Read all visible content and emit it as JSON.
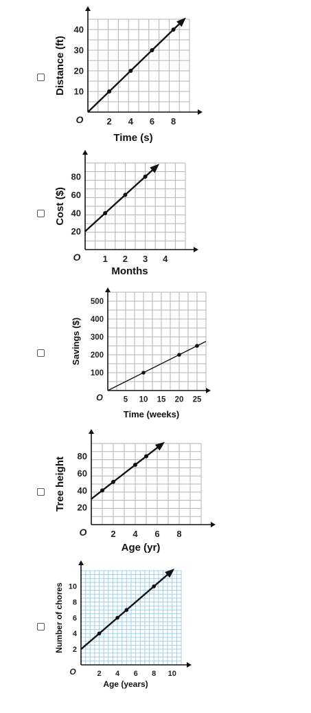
{
  "options": [
    {
      "chart_data": {
        "type": "line",
        "xlabel": "Time (s)",
        "ylabel": "Distance (ft)",
        "origin_label": "O",
        "xticks": [
          2,
          4,
          6,
          8
        ],
        "yticks": [
          10,
          20,
          30,
          40
        ],
        "xlim": [
          0,
          9.5
        ],
        "ylim": [
          0,
          45
        ],
        "points": [
          [
            2,
            10
          ],
          [
            4,
            20
          ],
          [
            6,
            30
          ],
          [
            8,
            40
          ]
        ],
        "line": {
          "x1": 0,
          "y1": 0,
          "x2": 8.8,
          "y2": 44
        }
      }
    },
    {
      "chart_data": {
        "type": "line",
        "xlabel": "Months",
        "ylabel": "Cost ($)",
        "origin_label": "O",
        "xticks": [
          1,
          2,
          3,
          4
        ],
        "yticks": [
          20,
          40,
          60,
          80
        ],
        "xlim": [
          0,
          5
        ],
        "ylim": [
          0,
          95
        ],
        "points": [
          [
            1,
            40
          ],
          [
            2,
            60
          ],
          [
            3,
            80
          ]
        ],
        "line": {
          "x1": 0,
          "y1": 20,
          "x2": 3.5,
          "y2": 90
        }
      }
    },
    {
      "chart_data": {
        "type": "line",
        "xlabel": "Time (weeks)",
        "ylabel": "Savings ($)",
        "origin_label": "O",
        "xticks": [
          5,
          10,
          15,
          20,
          25
        ],
        "yticks": [
          100,
          200,
          300,
          400,
          500
        ],
        "xlim": [
          0,
          27.5
        ],
        "ylim": [
          0,
          550
        ],
        "points": [
          [
            10,
            100
          ],
          [
            20,
            200
          ],
          [
            25,
            250
          ]
        ],
        "line": {
          "x1": 0,
          "y1": 0,
          "x2": 27.5,
          "y2": 275
        }
      }
    },
    {
      "chart_data": {
        "type": "line",
        "xlabel": "Age (yr)",
        "ylabel": "Tree height",
        "origin_label": "O",
        "xticks": [
          2,
          4,
          6,
          8
        ],
        "yticks": [
          20,
          40,
          60,
          80
        ],
        "xlim": [
          0,
          10
        ],
        "ylim": [
          0,
          95
        ],
        "points": [
          [
            1,
            40
          ],
          [
            2,
            50
          ],
          [
            4,
            70
          ],
          [
            5,
            80
          ]
        ],
        "line": {
          "x1": 0,
          "y1": 30,
          "x2": 6.3,
          "y2": 93
        }
      }
    },
    {
      "chart_data": {
        "type": "line",
        "xlabel": "Age (years)",
        "ylabel": "Number of chores",
        "origin_label": "O",
        "xticks": [
          2,
          4,
          6,
          8,
          10
        ],
        "yticks": [
          2,
          4,
          6,
          8,
          10
        ],
        "xlim": [
          0,
          11
        ],
        "ylim": [
          0,
          12
        ],
        "points": [
          [
            2,
            4
          ],
          [
            4,
            6
          ],
          [
            5,
            7
          ],
          [
            8,
            10
          ]
        ],
        "line": {
          "x1": 0,
          "y1": 2,
          "x2": 9.8,
          "y2": 11.8
        }
      }
    }
  ],
  "colors": {
    "grid": "#b3b3b3",
    "grid_blue": "#9fd0ec",
    "axis": "#111111",
    "line": "#111111",
    "point": "#111111"
  }
}
